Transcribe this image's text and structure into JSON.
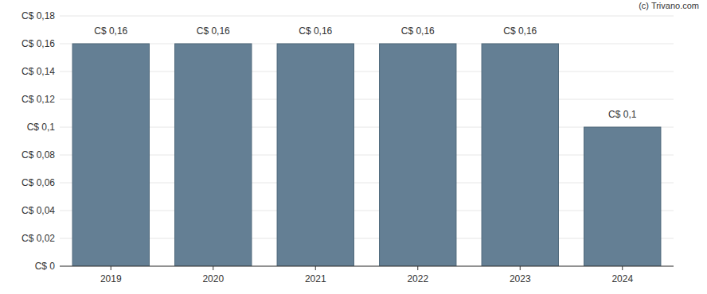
{
  "chart_data": {
    "type": "bar",
    "annotations": [
      "(c) Trivano.com"
    ],
    "categories": [
      "2019",
      "2020",
      "2021",
      "2022",
      "2023",
      "2024"
    ],
    "values": [
      0.16,
      0.16,
      0.16,
      0.16,
      0.16,
      0.1
    ],
    "value_labels": [
      "C$ 0,16",
      "C$ 0,16",
      "C$ 0,16",
      "C$ 0,16",
      "C$ 0,16",
      "C$ 0,1"
    ],
    "color": "#647f94",
    "ylim": [
      0,
      0.18
    ],
    "yticks": [
      {
        "value": 0,
        "label": "C$ 0"
      },
      {
        "value": 0.02,
        "label": "C$ 0,02"
      },
      {
        "value": 0.04,
        "label": "C$ 0,04"
      },
      {
        "value": 0.06,
        "label": "C$ 0,06"
      },
      {
        "value": 0.08,
        "label": "C$ 0,08"
      },
      {
        "value": 0.1,
        "label": "C$ 0,1"
      },
      {
        "value": 0.12,
        "label": "C$ 0,12"
      },
      {
        "value": 0.14,
        "label": "C$ 0,14"
      },
      {
        "value": 0.16,
        "label": "C$ 0,16"
      },
      {
        "value": 0.18,
        "label": "C$ 0,18"
      }
    ],
    "grid": true,
    "data_labels": true
  }
}
